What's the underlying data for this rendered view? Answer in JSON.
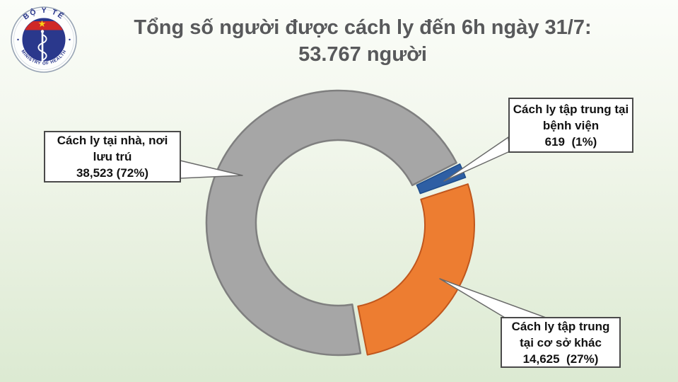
{
  "logo": {
    "top_text": "BỘ Y TẾ",
    "bottom_text": "MINISTRY OF HEALTH",
    "star_glyph": "★",
    "colors": {
      "disc": "#2a388c",
      "band": "#cf2827",
      "star": "#f8d414",
      "ring": "#98a4b4"
    }
  },
  "title": {
    "line1": "Tổng số người được cách ly đến 6h ngày 31/7:",
    "line2": "53.767 người",
    "color": "#58595b"
  },
  "chart_data": {
    "type": "pie",
    "variant": "doughnut",
    "title": "Tổng số người được cách ly đến 6h ngày 31/7: 53.767 người",
    "total": 53767,
    "unit": "người",
    "legend_position": "none",
    "labels_as_callouts": true,
    "slices": [
      {
        "id": "home",
        "label": "Cách ly tại nhà, nơi lưu trú",
        "value": 38523,
        "percent": 72,
        "color": "#a6a6a6",
        "border": "#7f7f7f"
      },
      {
        "id": "hospital",
        "label": "Cách ly tập trung tại bệnh viện",
        "value": 619,
        "percent": 1,
        "color": "#2e5fa4",
        "border": "#1f4e8c"
      },
      {
        "id": "other",
        "label": "Cách ly tập trung tại cơ sở khác",
        "value": 14625,
        "percent": 27,
        "color": "#ed7d31",
        "border": "#c0561d"
      }
    ]
  },
  "callouts": {
    "home": {
      "lines": [
        "Cách ly tại nhà, nơi",
        "lưu trú",
        "38,523 (72%)"
      ]
    },
    "hospital": {
      "lines": [
        "Cách ly tập trung tại",
        "bệnh viện",
        "619  (1%)"
      ]
    },
    "other": {
      "lines": [
        "Cách ly tập trung",
        "tại cơ sở khác",
        "14,625  (27%)"
      ]
    }
  }
}
